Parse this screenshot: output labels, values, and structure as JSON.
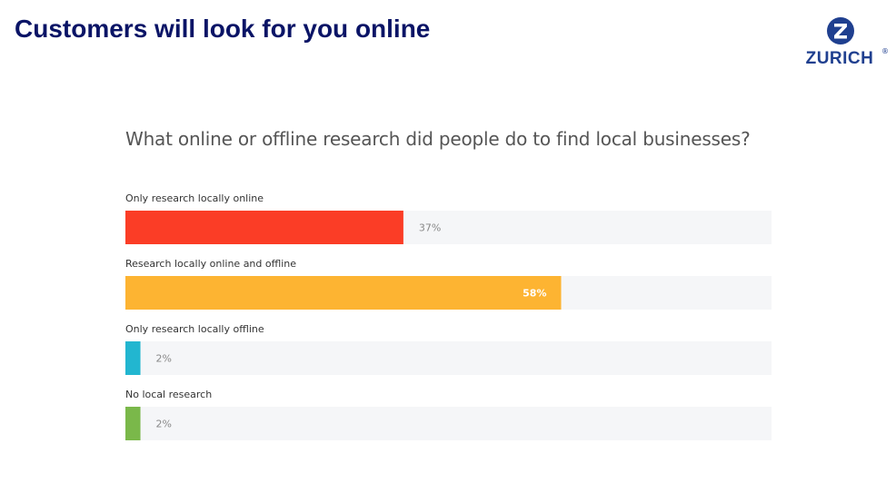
{
  "header": {
    "title": "Customers will look for you online"
  },
  "logo": {
    "text": "ZURICH",
    "registered_mark": "®",
    "color": "#1f3f8f"
  },
  "chart_data": {
    "type": "bar",
    "orientation": "horizontal",
    "title": "What online or offline research did people do to find local businesses?",
    "categories": [
      "Only research locally online",
      "Research locally online and offline",
      "Only research locally offline",
      "No local research"
    ],
    "values": [
      37,
      58,
      2,
      2
    ],
    "value_labels": [
      "37%",
      "58%",
      "2%",
      "2%"
    ],
    "colors": [
      "#fb3d26",
      "#fdb432",
      "#22b6d0",
      "#7ab84a"
    ],
    "track_color": "#f5f6f8",
    "xlim": [
      0,
      86
    ],
    "unit": "%",
    "grid": false,
    "legend": "none"
  }
}
